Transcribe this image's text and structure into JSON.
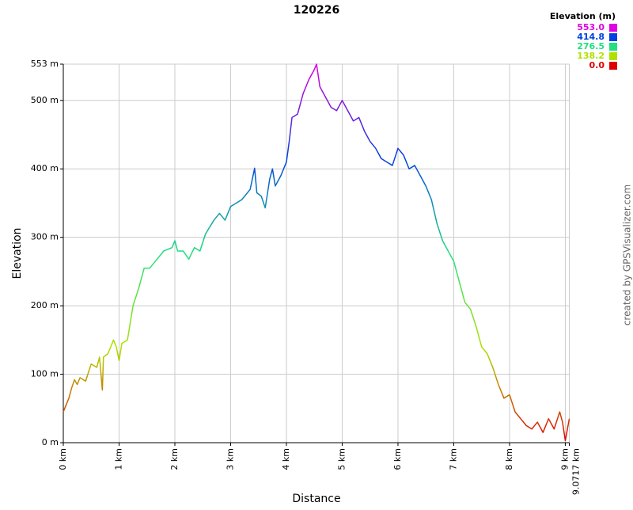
{
  "chart_data": {
    "type": "line",
    "title": "120226",
    "xlabel": "Distance",
    "ylabel": "Elevation",
    "credit": "created by GPSVisualizer.com",
    "legend_title": "Elevation (m)",
    "color_scale": [
      {
        "value": 553.0,
        "label": "553.0",
        "color": "#e000e0"
      },
      {
        "value": 414.8,
        "label": "414.8",
        "color": "#0040e0"
      },
      {
        "value": 276.5,
        "label": "276.5",
        "color": "#20e080"
      },
      {
        "value": 138.2,
        "label": "138.2",
        "color": "#b0e000"
      },
      {
        "value": 0.0,
        "label": "0.0",
        "color": "#e00000"
      }
    ],
    "xlim": [
      0,
      9.0717
    ],
    "ylim": [
      0,
      553
    ],
    "xticks": [
      {
        "value": 0,
        "label": "0 km"
      },
      {
        "value": 1,
        "label": "1 km"
      },
      {
        "value": 2,
        "label": "2 km"
      },
      {
        "value": 3,
        "label": "3 km"
      },
      {
        "value": 4,
        "label": "4 km"
      },
      {
        "value": 5,
        "label": "5 km"
      },
      {
        "value": 6,
        "label": "6 km"
      },
      {
        "value": 7,
        "label": "7 km"
      },
      {
        "value": 8,
        "label": "8 km"
      },
      {
        "value": 9,
        "label": "9 km"
      },
      {
        "value": 9.0717,
        "label": "9.0717 km"
      }
    ],
    "yticks": [
      {
        "value": 0,
        "label": "0 m"
      },
      {
        "value": 100,
        "label": "100 m"
      },
      {
        "value": 200,
        "label": "200 m"
      },
      {
        "value": 300,
        "label": "300 m"
      },
      {
        "value": 400,
        "label": "400 m"
      },
      {
        "value": 500,
        "label": "500 m"
      },
      {
        "value": 553,
        "label": "553 m"
      }
    ],
    "grid": true,
    "x": [
      0,
      0.05,
      0.1,
      0.15,
      0.2,
      0.25,
      0.3,
      0.4,
      0.5,
      0.6,
      0.65,
      0.7,
      0.72,
      0.8,
      0.9,
      0.95,
      1.0,
      1.05,
      1.15,
      1.25,
      1.35,
      1.45,
      1.55,
      1.65,
      1.8,
      1.95,
      2.0,
      2.05,
      2.15,
      2.25,
      2.35,
      2.45,
      2.55,
      2.7,
      2.8,
      2.9,
      3.0,
      3.1,
      3.2,
      3.35,
      3.43,
      3.47,
      3.55,
      3.62,
      3.7,
      3.75,
      3.8,
      3.9,
      4.0,
      4.05,
      4.1,
      4.2,
      4.3,
      4.4,
      4.5,
      4.54,
      4.6,
      4.7,
      4.8,
      4.9,
      5.0,
      5.1,
      5.2,
      5.3,
      5.4,
      5.5,
      5.6,
      5.7,
      5.8,
      5.9,
      6.0,
      6.1,
      6.2,
      6.3,
      6.4,
      6.5,
      6.6,
      6.7,
      6.8,
      6.9,
      7.0,
      7.1,
      7.2,
      7.3,
      7.4,
      7.5,
      7.6,
      7.7,
      7.8,
      7.9,
      8.0,
      8.1,
      8.2,
      8.3,
      8.4,
      8.5,
      8.6,
      8.7,
      8.8,
      8.9,
      8.95,
      9.0,
      9.0717
    ],
    "y": [
      45,
      55,
      65,
      80,
      92,
      85,
      95,
      90,
      115,
      110,
      125,
      77,
      125,
      130,
      150,
      140,
      120,
      145,
      150,
      200,
      225,
      255,
      255,
      265,
      280,
      285,
      295,
      280,
      280,
      268,
      285,
      280,
      305,
      325,
      335,
      325,
      345,
      350,
      355,
      370,
      401,
      365,
      360,
      343,
      385,
      400,
      375,
      390,
      410,
      440,
      475,
      480,
      510,
      530,
      545,
      553,
      520,
      505,
      490,
      485,
      500,
      485,
      470,
      475,
      455,
      440,
      430,
      415,
      410,
      405,
      430,
      420,
      400,
      405,
      390,
      375,
      355,
      320,
      295,
      280,
      265,
      235,
      205,
      195,
      170,
      140,
      130,
      110,
      85,
      65,
      70,
      45,
      35,
      25,
      20,
      30,
      15,
      35,
      20,
      45,
      30,
      3,
      35
    ]
  }
}
